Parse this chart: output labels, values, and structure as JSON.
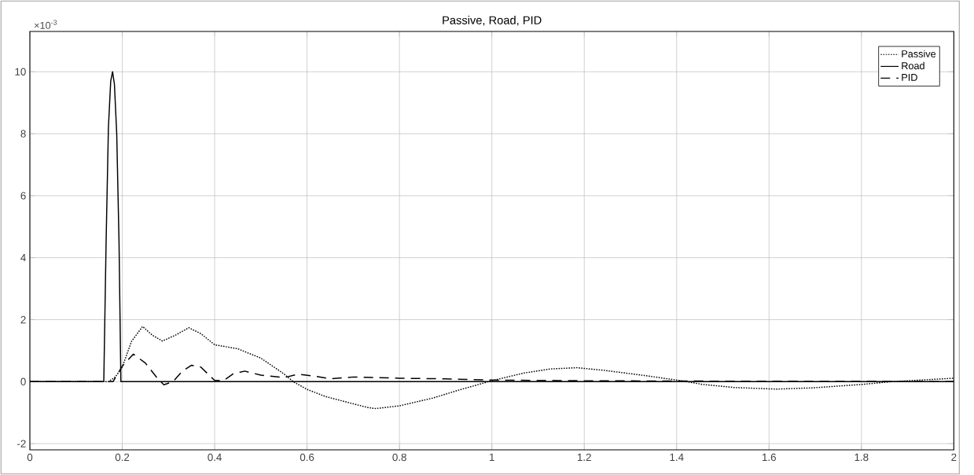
{
  "chart_data": {
    "type": "line",
    "title": "Passive, Road, PID",
    "annotations": [
      "×10$^{-3}$"
    ],
    "xlim": [
      0,
      2
    ],
    "ylim": [
      -2.2,
      11.3
    ],
    "xticks": [
      0,
      0.2,
      0.4,
      0.6,
      0.8,
      1,
      1.2,
      1.4,
      1.6,
      1.8,
      2
    ],
    "yticks": [
      -2,
      0,
      2,
      4,
      6,
      8,
      10
    ],
    "grid": true,
    "legend": "top right",
    "marker": "none",
    "series": [
      {
        "name": "Passive",
        "color": "#000000",
        "line_style": "dotted",
        "x": [
          0,
          0.17,
          0.185,
          0.2,
          0.22,
          0.244,
          0.265,
          0.287,
          0.315,
          0.344,
          0.37,
          0.4,
          0.45,
          0.5,
          0.55,
          0.57,
          0.6,
          0.64,
          0.673,
          0.73,
          0.748,
          0.8,
          0.872,
          0.929,
          1.0,
          1.07,
          1.127,
          1.184,
          1.24,
          1.33,
          1.4,
          1.457,
          1.525,
          1.616,
          1.695,
          1.8,
          1.866,
          2.0
        ],
        "values": [
          0,
          0,
          0.15,
          0.47,
          1.3,
          1.78,
          1.5,
          1.31,
          1.5,
          1.74,
          1.55,
          1.19,
          1.06,
          0.76,
          0.25,
          0,
          -0.25,
          -0.48,
          -0.61,
          -0.83,
          -0.87,
          -0.78,
          -0.53,
          -0.27,
          0.03,
          0.28,
          0.41,
          0.45,
          0.37,
          0.2,
          0.05,
          -0.09,
          -0.19,
          -0.24,
          -0.2,
          -0.09,
          0,
          0.11
        ]
      },
      {
        "name": "Road",
        "color": "#000000",
        "line_style": "solid",
        "x": [
          0,
          0.16,
          0.165,
          0.17,
          0.175,
          0.179,
          0.183,
          0.188,
          0.193,
          0.197,
          2
        ],
        "values": [
          0,
          0,
          4.5,
          8.2,
          9.7,
          10,
          9.6,
          8,
          4.5,
          0,
          0
        ]
      },
      {
        "name": "PID",
        "color": "#000000",
        "line_style": "dashed",
        "x": [
          0,
          0.18,
          0.2,
          0.224,
          0.25,
          0.275,
          0.29,
          0.31,
          0.33,
          0.35,
          0.37,
          0.4,
          0.42,
          0.44,
          0.465,
          0.5,
          0.55,
          0.58,
          0.62,
          0.65,
          0.7,
          0.8,
          0.9,
          1.0,
          1.2,
          1.4,
          2.0
        ],
        "values": [
          0,
          0,
          0.5,
          0.89,
          0.6,
          0.13,
          -0.1,
          0,
          0.34,
          0.53,
          0.47,
          0.04,
          0.04,
          0.25,
          0.34,
          0.21,
          0.13,
          0.24,
          0.17,
          0.09,
          0.15,
          0.11,
          0.09,
          0.05,
          0.03,
          0.02,
          0
        ]
      }
    ]
  }
}
